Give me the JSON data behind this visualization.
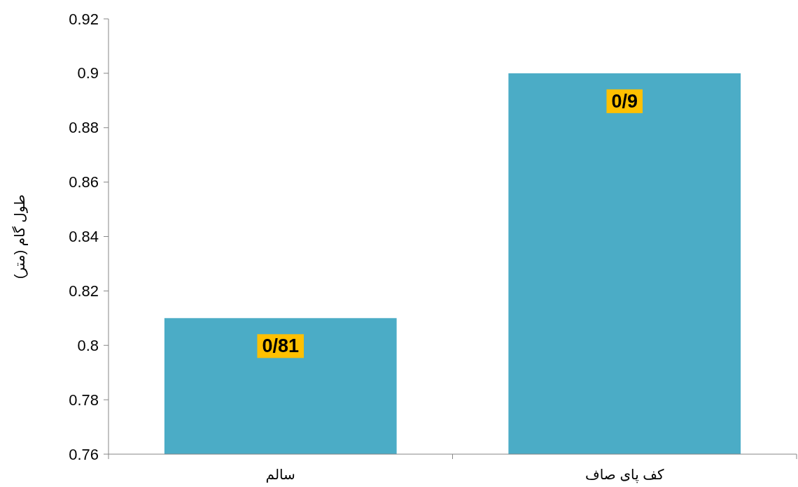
{
  "chart_data": {
    "type": "bar",
    "ylabel": "طول گام (متر)",
    "categories": [
      "سالم",
      "کف پای صاف"
    ],
    "values": [
      0.81,
      0.9
    ],
    "color": "#4bacc6",
    "value_labels": [
      "0/81",
      "0/9"
    ],
    "ylim": [
      0.76,
      0.92
    ],
    "yticks": [
      0.76,
      0.78,
      0.8,
      0.82,
      0.84,
      0.86,
      0.88,
      0.9,
      0.92
    ]
  }
}
